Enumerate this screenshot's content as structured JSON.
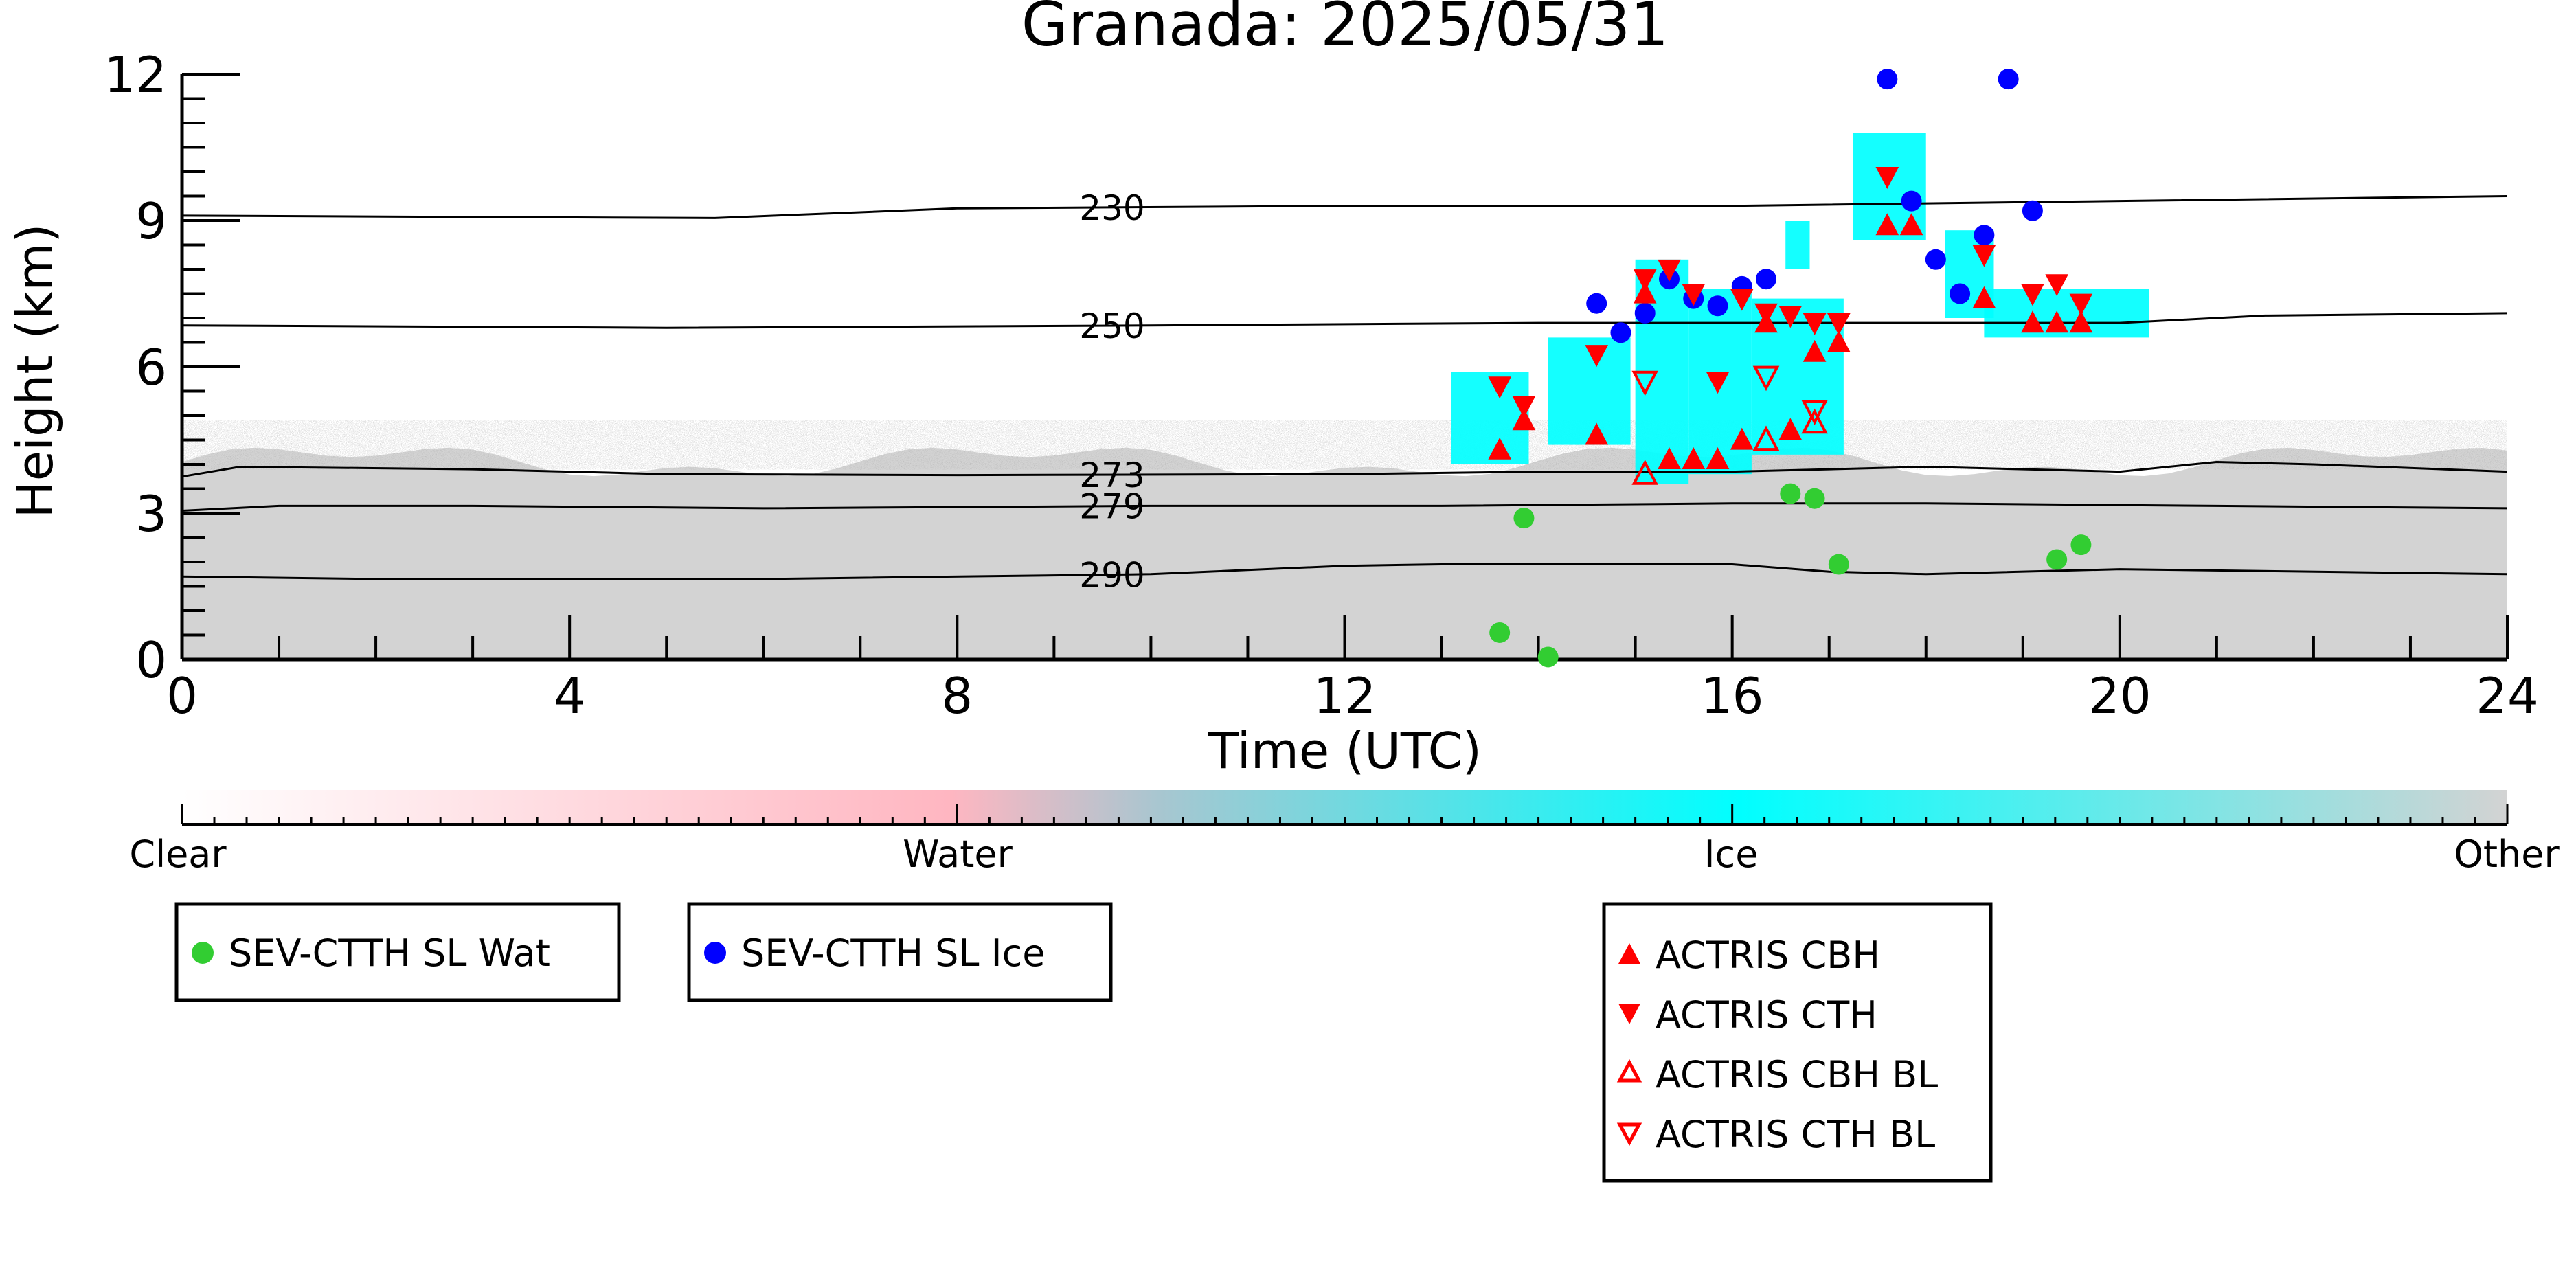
{
  "chart_data": {
    "type": "scatter",
    "title": "Granada: 2025/05/31",
    "xlabel": "Time (UTC)",
    "ylabel": "Height (km)",
    "xlim": [
      0,
      24
    ],
    "ylim": [
      0,
      12
    ],
    "x_ticks": [
      "0",
      "4",
      "8",
      "12",
      "16",
      "20",
      "24"
    ],
    "y_ticks": [
      "0",
      "3",
      "6",
      "9",
      "12"
    ],
    "colorbar": {
      "labels": [
        "Clear",
        "Water",
        "Ice",
        "Other"
      ],
      "colors": [
        "#ffffff",
        "#ffb6c1",
        "#00ffff",
        "#d3d3d3"
      ]
    },
    "isotherms": [
      {
        "label": "230",
        "points": [
          [
            0,
            9.1
          ],
          [
            5.5,
            9.05
          ],
          [
            8,
            9.25
          ],
          [
            12,
            9.3
          ],
          [
            16,
            9.3
          ],
          [
            20,
            9.4
          ],
          [
            24,
            9.5
          ]
        ]
      },
      {
        "label": "250",
        "points": [
          [
            0,
            6.85
          ],
          [
            5,
            6.8
          ],
          [
            10,
            6.85
          ],
          [
            14,
            6.9
          ],
          [
            16,
            6.9
          ],
          [
            20,
            6.9
          ],
          [
            21.5,
            7.05
          ],
          [
            24,
            7.1
          ]
        ]
      },
      {
        "label": "273",
        "points": [
          [
            0,
            3.75
          ],
          [
            0.6,
            3.95
          ],
          [
            3,
            3.9
          ],
          [
            5,
            3.8
          ],
          [
            8,
            3.78
          ],
          [
            12,
            3.8
          ],
          [
            14,
            3.85
          ],
          [
            16,
            3.85
          ],
          [
            17,
            3.9
          ],
          [
            18,
            3.95
          ],
          [
            20,
            3.85
          ],
          [
            21,
            4.05
          ],
          [
            22,
            4.0
          ],
          [
            24,
            3.85
          ]
        ]
      },
      {
        "label": "279",
        "points": [
          [
            0,
            3.05
          ],
          [
            1,
            3.15
          ],
          [
            3,
            3.15
          ],
          [
            6,
            3.1
          ],
          [
            10,
            3.15
          ],
          [
            13,
            3.15
          ],
          [
            16,
            3.2
          ],
          [
            18,
            3.2
          ],
          [
            21,
            3.15
          ],
          [
            24,
            3.1
          ]
        ]
      },
      {
        "label": "290",
        "points": [
          [
            0,
            1.7
          ],
          [
            2,
            1.65
          ],
          [
            6,
            1.65
          ],
          [
            10,
            1.75
          ],
          [
            12,
            1.92
          ],
          [
            13,
            1.95
          ],
          [
            16,
            1.95
          ],
          [
            17,
            1.8
          ],
          [
            18,
            1.75
          ],
          [
            20,
            1.85
          ],
          [
            24,
            1.75
          ]
        ]
      }
    ],
    "series": [
      {
        "name": "SEV-CTTH SL Wat",
        "marker": "circle",
        "color": "#32cd32",
        "x": [
          13.6,
          13.85,
          14.1,
          16.6,
          16.85,
          17.1,
          19.35,
          19.6
        ],
        "y": [
          0.55,
          2.9,
          0.05,
          3.4,
          3.3,
          1.95,
          2.05,
          2.35
        ]
      },
      {
        "name": "SEV-CTTH SL Ice",
        "marker": "circle",
        "color": "#0000ff",
        "x": [
          14.6,
          14.85,
          15.1,
          15.35,
          15.6,
          15.85,
          16.1,
          16.35,
          17.6,
          17.85,
          18.1,
          18.35,
          18.6,
          19.1,
          18.85
        ],
        "y": [
          7.3,
          6.7,
          7.1,
          7.8,
          7.4,
          7.25,
          7.65,
          7.8,
          11.9,
          9.4,
          8.2,
          7.5,
          8.7,
          9.2,
          11.9
        ]
      },
      {
        "name": "ACTRIS CBH",
        "marker": "triangle-up",
        "color": "#ff0000",
        "filled": true,
        "x": [
          13.6,
          13.85,
          14.6,
          15.1,
          15.35,
          15.6,
          15.85,
          16.1,
          16.35,
          16.6,
          16.85,
          17.1,
          17.6,
          17.85,
          18.6,
          19.1,
          19.35,
          19.6
        ],
        "y": [
          4.3,
          4.9,
          4.6,
          7.5,
          4.1,
          4.1,
          4.1,
          4.5,
          6.9,
          4.7,
          6.3,
          6.5,
          8.9,
          8.9,
          7.4,
          6.9,
          6.9,
          6.9
        ]
      },
      {
        "name": "ACTRIS CTH",
        "marker": "triangle-down",
        "color": "#ff0000",
        "filled": true,
        "x": [
          13.6,
          13.85,
          14.6,
          15.1,
          15.35,
          15.6,
          15.85,
          16.1,
          16.35,
          16.6,
          16.85,
          17.1,
          17.6,
          18.6,
          19.1,
          19.35,
          19.6
        ],
        "y": [
          5.6,
          5.2,
          6.25,
          7.8,
          8.0,
          7.5,
          5.7,
          7.4,
          7.1,
          7.05,
          6.9,
          6.9,
          9.9,
          8.3,
          7.5,
          7.7,
          7.3
        ]
      },
      {
        "name": "ACTRIS CBH BL",
        "marker": "triangle-up",
        "color": "#ff0000",
        "filled": false,
        "x": [
          15.1,
          16.35,
          16.85
        ],
        "y": [
          3.8,
          4.5,
          4.85
        ]
      },
      {
        "name": "ACTRIS CTH BL",
        "marker": "triangle-down",
        "color": "#ff0000",
        "filled": false,
        "x": [
          15.1,
          16.35,
          16.85
        ],
        "y": [
          5.7,
          5.8,
          5.1
        ]
      }
    ],
    "ice_regions": [
      {
        "x": [
          13.1,
          13.9
        ],
        "y": [
          4.0,
          5.9
        ]
      },
      {
        "x": [
          14.1,
          14.95
        ],
        "y": [
          4.4,
          6.6
        ]
      },
      {
        "x": [
          15.0,
          15.55
        ],
        "y": [
          3.6,
          8.2
        ]
      },
      {
        "x": [
          15.55,
          16.2
        ],
        "y": [
          3.8,
          7.6
        ]
      },
      {
        "x": [
          16.2,
          17.15
        ],
        "y": [
          4.2,
          7.4
        ]
      },
      {
        "x": [
          16.55,
          16.8
        ],
        "y": [
          8.0,
          9.0
        ]
      },
      {
        "x": [
          17.25,
          18.0
        ],
        "y": [
          8.6,
          10.8
        ]
      },
      {
        "x": [
          18.2,
          18.7
        ],
        "y": [
          7.0,
          8.8
        ]
      },
      {
        "x": [
          18.6,
          20.3
        ],
        "y": [
          6.6,
          7.6
        ]
      }
    ],
    "legend": {
      "boxes": [
        [
          "SEV-CTTH SL Wat"
        ],
        [
          "SEV-CTTH SL Ice"
        ],
        [
          "ACTRIS CBH",
          "ACTRIS CTH",
          "ACTRIS CBH BL",
          "ACTRIS CTH BL"
        ]
      ]
    }
  }
}
